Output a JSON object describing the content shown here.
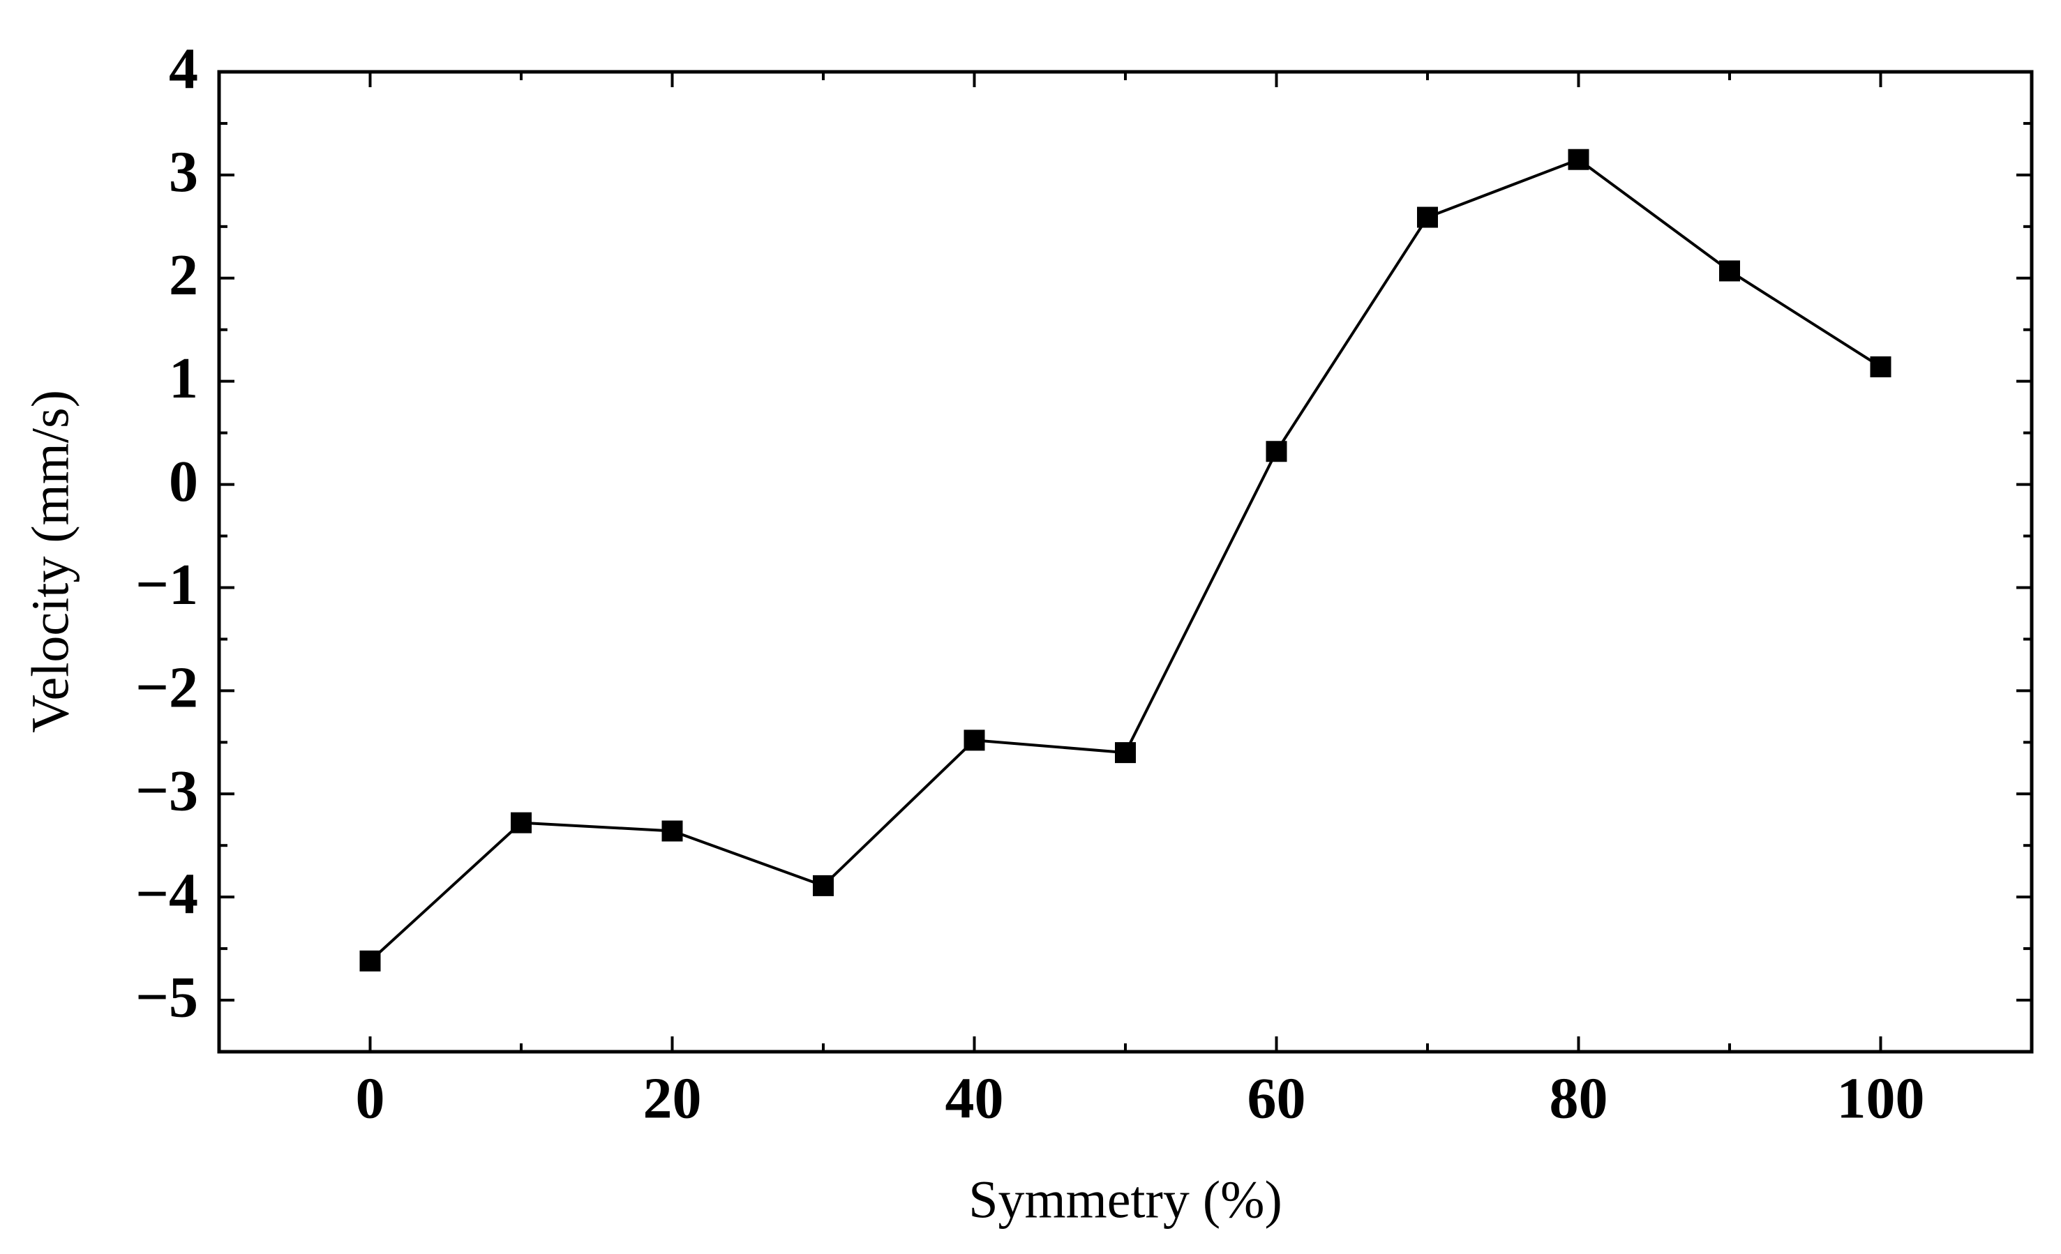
{
  "chart_data": {
    "type": "line",
    "x_label": "Symmetry (%)",
    "y_label": "Velocity (mm/s)",
    "x": [
      0,
      10,
      20,
      30,
      40,
      50,
      60,
      70,
      80,
      90,
      100
    ],
    "series": [
      {
        "name": "Velocity",
        "color": "#000000",
        "values": [
          -4.62,
          -3.28,
          -3.36,
          -3.89,
          -2.48,
          -2.6,
          0.32,
          2.59,
          3.15,
          2.07,
          1.14
        ]
      }
    ],
    "marker": "square",
    "xlim": [
      -10,
      110
    ],
    "xticks": [
      0,
      20,
      40,
      60,
      80,
      100
    ],
    "ylim": [
      -5.5,
      4
    ],
    "yticks": [
      {
        "value": -5,
        "label": "−5"
      },
      {
        "value": -4,
        "label": "−4"
      },
      {
        "value": -3,
        "label": "−3"
      },
      {
        "value": -2,
        "label": "−2"
      },
      {
        "value": -1,
        "label": "−1"
      },
      0,
      1,
      2,
      3,
      4
    ],
    "grid": false
  }
}
